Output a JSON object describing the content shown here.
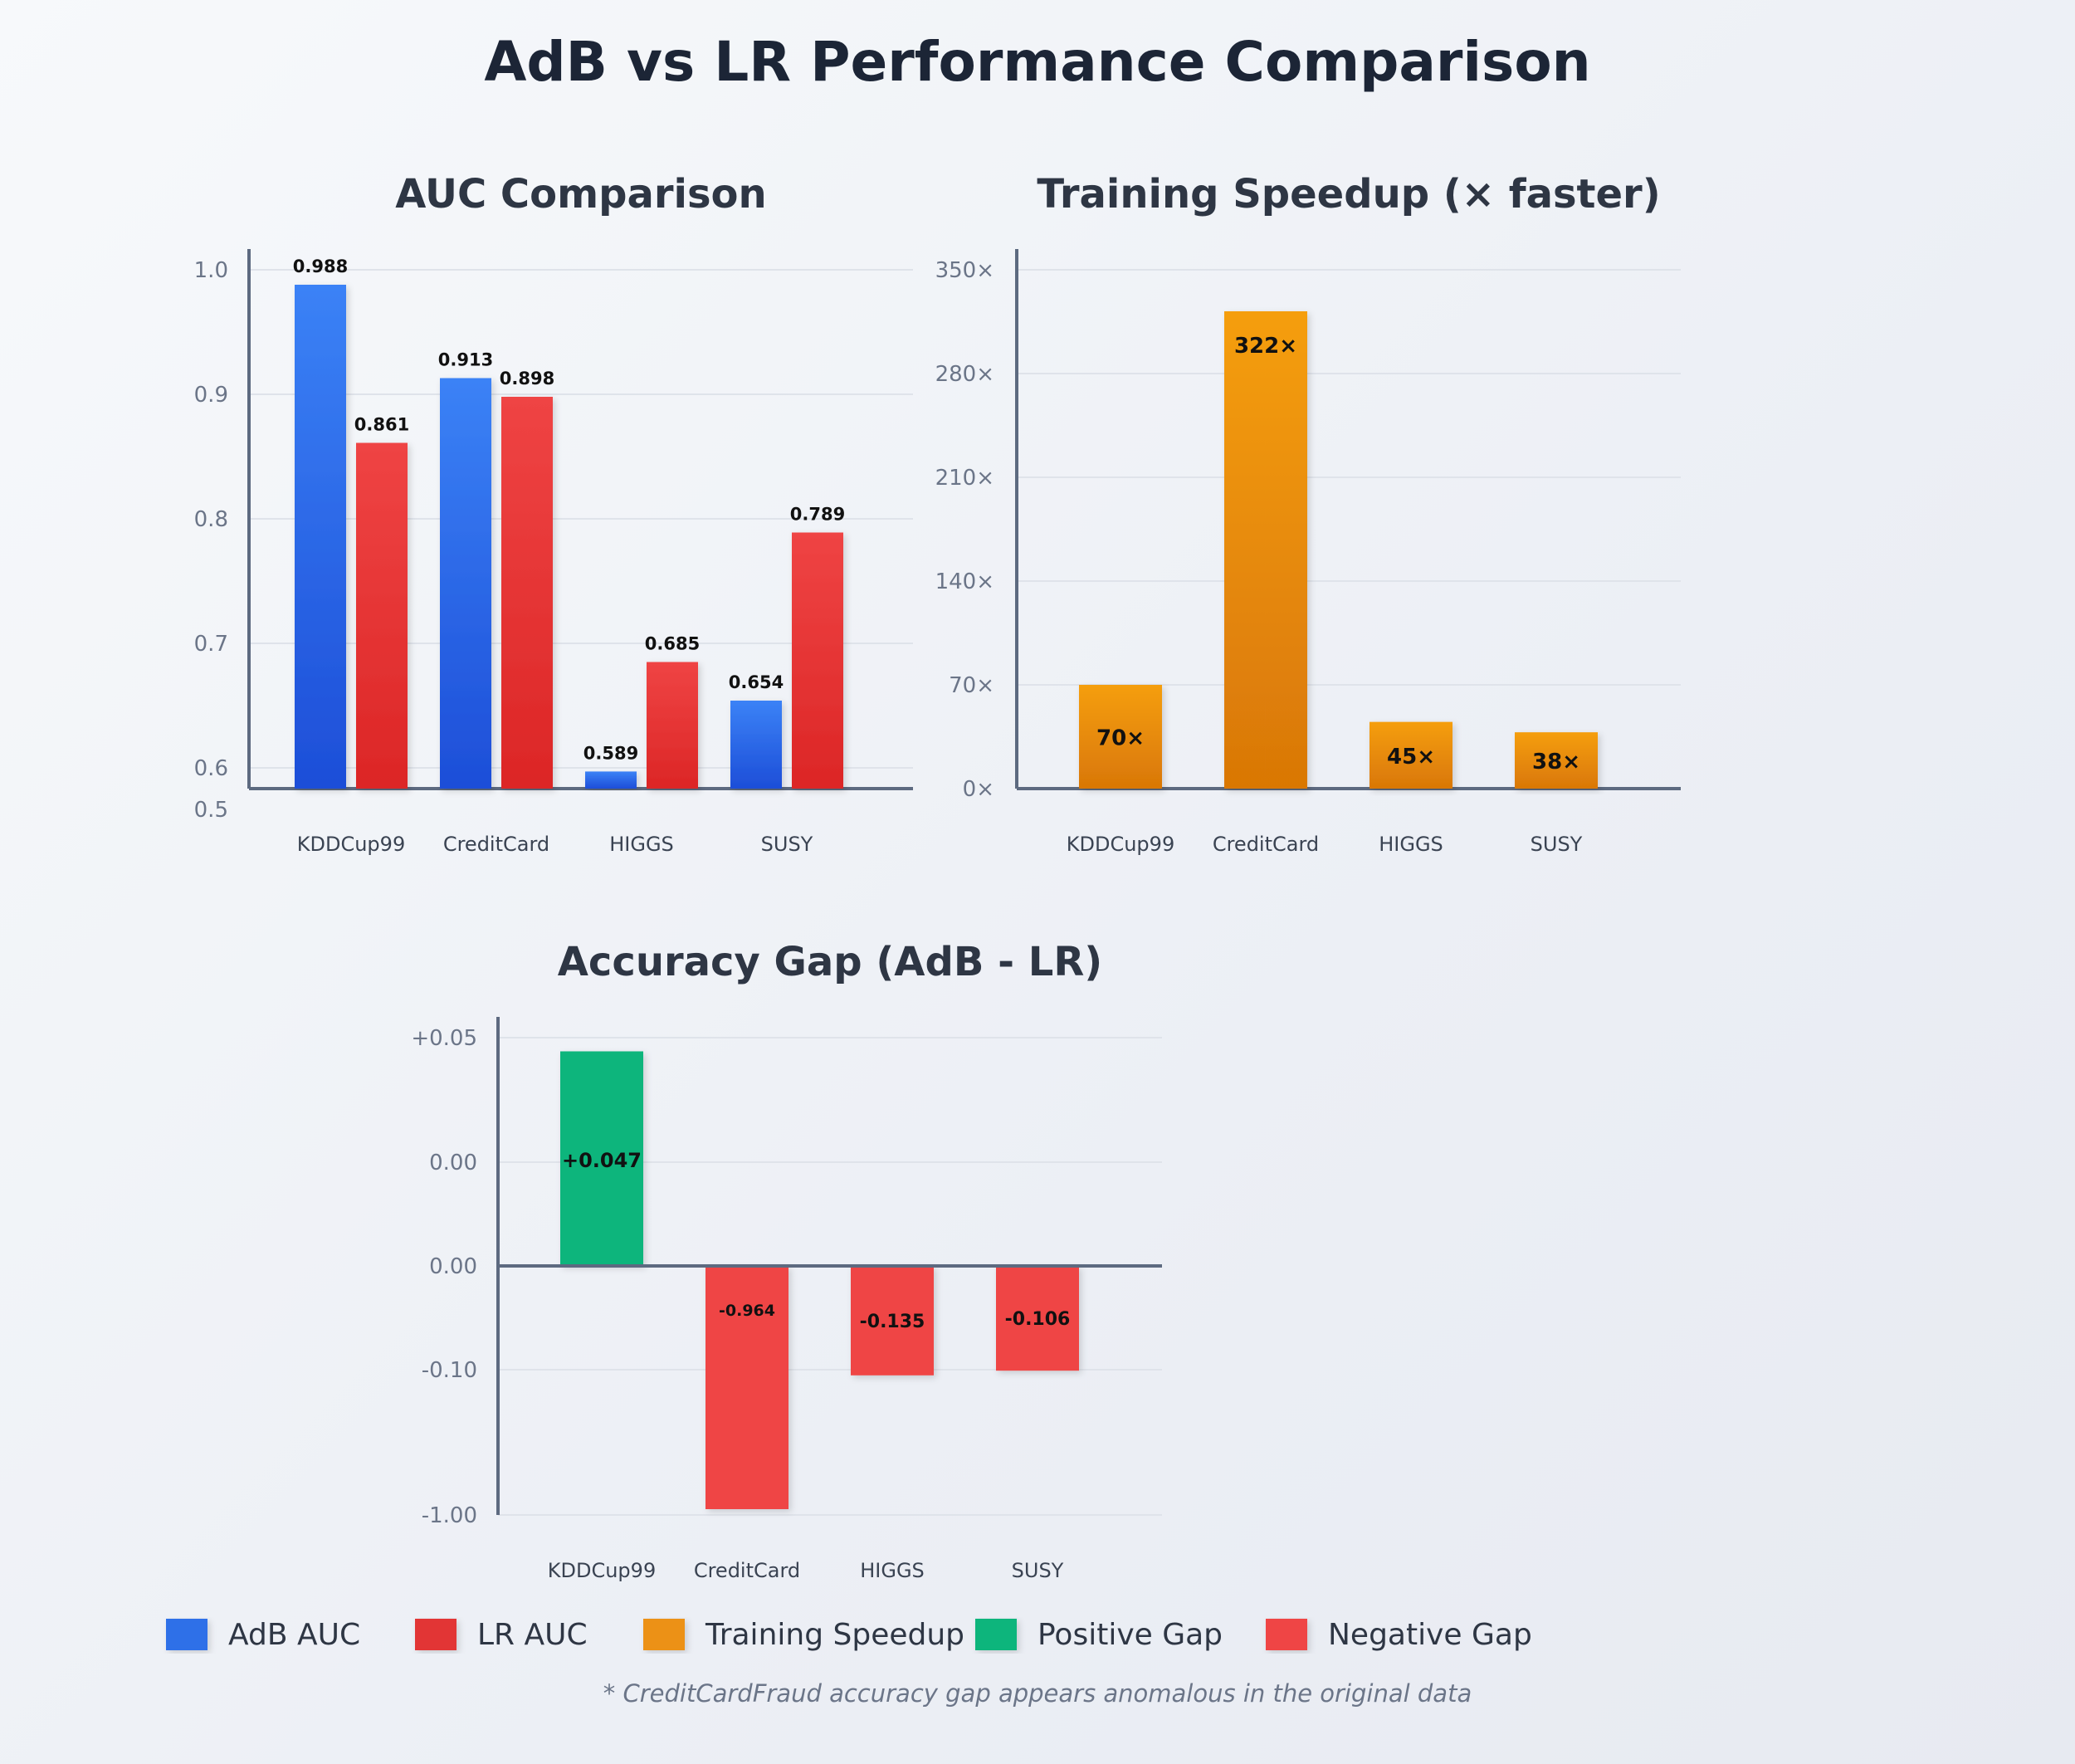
{
  "title": "AdB vs LR Performance Comparison",
  "colors": {
    "adb": "#2f6fe8",
    "lr": "#e23434",
    "speedup": "#ec9112",
    "positive": "#10b57b",
    "negative": "#ef4444",
    "axis": "#5d6a80",
    "grid": "#dfe3ea"
  },
  "chart_data": [
    {
      "id": "auc",
      "type": "bar",
      "title": "AUC Comparison",
      "categories": [
        "KDDCup99",
        "CreditCard",
        "HIGGS",
        "SUSY"
      ],
      "series": [
        {
          "name": "AdB AUC",
          "values": [
            0.988,
            0.913,
            0.589,
            0.654
          ],
          "labels": [
            "0.988",
            "0.913",
            "0.589",
            "0.654"
          ]
        },
        {
          "name": "LR AUC",
          "values": [
            0.861,
            0.898,
            0.685,
            0.789
          ],
          "labels": [
            "0.861",
            "0.898",
            "0.685",
            "0.789"
          ]
        }
      ],
      "y_ticks": [
        "1.0",
        "0.9",
        "0.8",
        "0.7",
        "0.6",
        "0.5"
      ],
      "legend": "bottom",
      "grid": true
    },
    {
      "id": "speedup",
      "type": "bar",
      "title": "Training Speedup (× faster)",
      "categories": [
        "KDDCup99",
        "CreditCard",
        "HIGGS",
        "SUSY"
      ],
      "series": [
        {
          "name": "Training Speedup",
          "values": [
            70,
            322,
            45,
            38
          ],
          "labels": [
            "70×",
            "322×",
            "45×",
            "38×"
          ]
        }
      ],
      "y_ticks": [
        "350×",
        "280×",
        "210×",
        "140×",
        "70×",
        "0×"
      ],
      "ylim": [
        0,
        350
      ],
      "grid": true
    },
    {
      "id": "gap",
      "type": "bar",
      "title": "Accuracy Gap (AdB - LR)",
      "categories": [
        "KDDCup99",
        "CreditCard",
        "HIGGS",
        "SUSY"
      ],
      "series": [
        {
          "name": "Accuracy Gap",
          "values": [
            0.047,
            -0.964,
            -0.135,
            -0.106
          ],
          "labels": [
            "+0.047",
            "-0.964",
            "-0.135",
            "-0.106"
          ]
        }
      ],
      "y_ticks": [
        "+0.05",
        "0.00",
        "0.00",
        "-0.10",
        "-1.00"
      ],
      "grid": true
    }
  ],
  "legend": [
    {
      "label": "AdB AUC",
      "color": "#2f6fe8"
    },
    {
      "label": "LR AUC",
      "color": "#e23434"
    },
    {
      "label": "Training Speedup",
      "color": "#ec9112"
    },
    {
      "label": "Positive Gap",
      "color": "#10b57b"
    },
    {
      "label": "Negative Gap",
      "color": "#ef4444"
    }
  ],
  "footnote": "* CreditCardFraud accuracy gap appears anomalous in the original data"
}
